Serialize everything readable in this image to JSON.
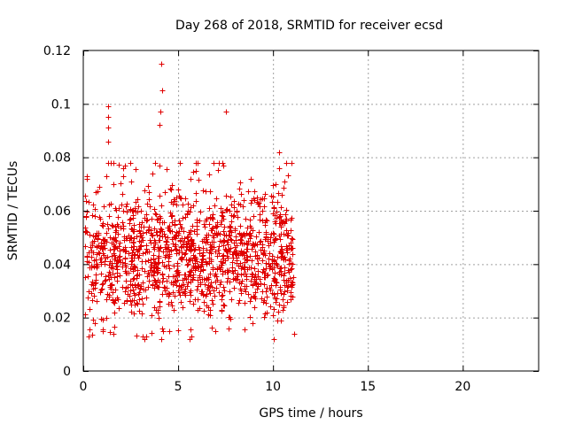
{
  "chart_data": {
    "type": "scatter",
    "title": "Day 268 of 2018, SRMTID for receiver ecsd",
    "xlabel": "GPS time / hours",
    "ylabel": "SRMTID / TECUs",
    "xlim": [
      0,
      24
    ],
    "ylim": [
      0,
      0.12
    ],
    "xticks": [
      0,
      5,
      10,
      15,
      20
    ],
    "xtick_labels": [
      "0",
      "5",
      "10",
      "15",
      "20"
    ],
    "yticks": [
      0,
      0.02,
      0.04,
      0.06,
      0.08,
      0.1,
      0.12
    ],
    "ytick_labels": [
      "0",
      "0.02",
      "0.04",
      "0.06",
      "0.08",
      "0.1",
      "0.12"
    ],
    "grid": true,
    "marker": "+",
    "series": [
      {
        "name": "SRMTID",
        "color": "#e00000",
        "seed": 268,
        "count": 1450,
        "x_range": [
          0.05,
          11.05
        ],
        "typical_range": [
          0.02,
          0.065
        ],
        "median": 0.042,
        "notable_points": [
          {
            "x": 4.1,
            "y": 0.115
          },
          {
            "x": 4.15,
            "y": 0.105
          },
          {
            "x": 4.05,
            "y": 0.097
          },
          {
            "x": 4.0,
            "y": 0.092
          },
          {
            "x": 7.5,
            "y": 0.097
          },
          {
            "x": 1.3,
            "y": 0.099
          },
          {
            "x": 1.3,
            "y": 0.095
          },
          {
            "x": 1.3,
            "y": 0.091
          },
          {
            "x": 1.3,
            "y": 0.086
          },
          {
            "x": 10.3,
            "y": 0.082
          },
          {
            "x": 0.3,
            "y": 0.013
          },
          {
            "x": 3.3,
            "y": 0.013
          },
          {
            "x": 11.1,
            "y": 0.014
          },
          {
            "x": 5.7,
            "y": 0.013
          },
          {
            "x": 1.6,
            "y": 0.014
          }
        ]
      }
    ]
  }
}
